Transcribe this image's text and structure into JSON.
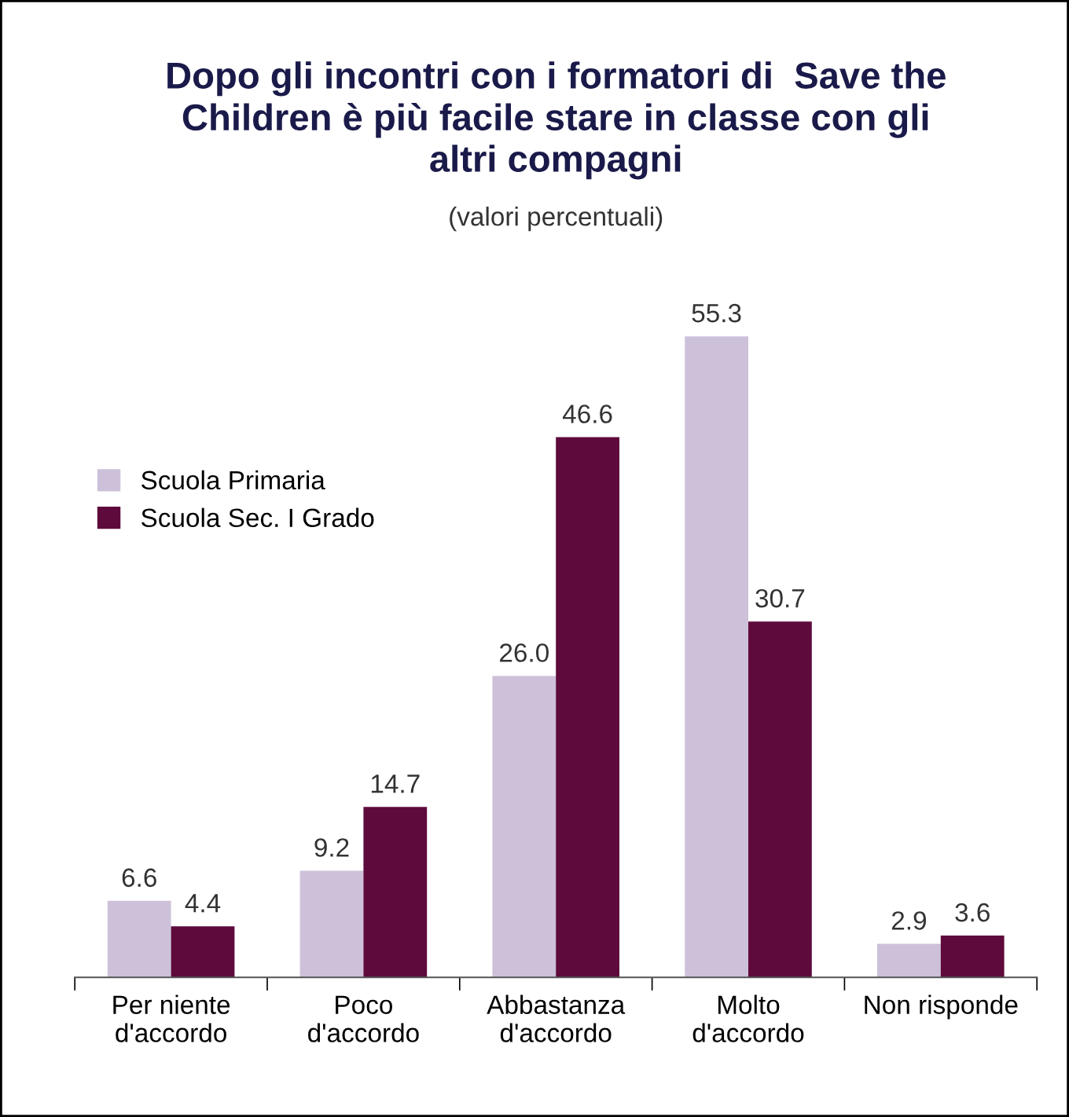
{
  "chart_data": {
    "type": "bar",
    "title": "Dopo gli incontri con i formatori di  Save the\nChildren è più facile stare in classe con gli\naltri compagni",
    "subtitle": "(valori percentuali)",
    "categories": [
      "Per niente\nd'accordo",
      "Poco\nd'accordo",
      "Abbastanza\nd'accordo",
      "Molto\nd'accordo",
      "Non risponde"
    ],
    "series": [
      {
        "name": "Scuola Primaria",
        "color": "#cdc1da",
        "values": [
          6.6,
          9.2,
          26.0,
          55.3,
          2.9
        ],
        "value_labels": [
          "6.6",
          "9.2",
          "26.0",
          "55.3",
          "2.9"
        ]
      },
      {
        "name": "Scuola Sec. I Grado",
        "color": "#5e0a3c",
        "values": [
          4.4,
          14.7,
          46.6,
          30.7,
          3.6
        ],
        "value_labels": [
          "4.4",
          "14.7",
          "46.6",
          "30.7",
          "3.6"
        ]
      }
    ],
    "grid": false,
    "legend": "top left"
  }
}
